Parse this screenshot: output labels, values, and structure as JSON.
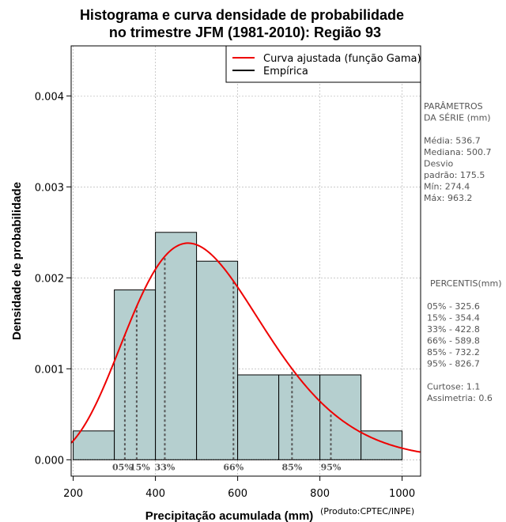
{
  "chart_data": {
    "type": "bar",
    "title": [
      "Histograma e curva densidade de probabilidade",
      "no trimestre JFM (1981-2010): Região 93"
    ],
    "xlabel": "Precipitação acumulada (mm)",
    "ylabel": "Densidade de probabilidade",
    "credit": "(Produto:CPTEC/INPE)",
    "xlim": [
      195,
      1045
    ],
    "ylim": [
      -0.00018,
      0.00455
    ],
    "x_ticks": [
      200,
      400,
      600,
      800,
      1000
    ],
    "x_tick_labels": [
      "200",
      "400",
      "600",
      "800",
      "1000"
    ],
    "y_ticks": [
      0,
      0.001,
      0.002,
      0.003,
      0.004
    ],
    "y_tick_labels": [
      "0.000",
      "0.001",
      "0.002",
      "0.003",
      "0.004"
    ],
    "grid": true,
    "bins": [
      {
        "from": 200,
        "to": 300,
        "density": 0.000317
      },
      {
        "from": 300,
        "to": 400,
        "density": 0.001867
      },
      {
        "from": 400,
        "to": 500,
        "density": 0.0025
      },
      {
        "from": 500,
        "to": 600,
        "density": 0.002183
      },
      {
        "from": 600,
        "to": 700,
        "density": 0.000933
      },
      {
        "from": 700,
        "to": 800,
        "density": 0.000933
      },
      {
        "from": 800,
        "to": 900,
        "density": 0.000933
      },
      {
        "from": 900,
        "to": 1000,
        "density": 0.000317
      }
    ],
    "fitted_curve": {
      "name": "Curva ajustada (função Gama)",
      "distribution": "gamma",
      "mean": 536.7,
      "sd": 175.5,
      "color": "#ee0000"
    },
    "empirical": {
      "name": "Empírica",
      "color": "#000000"
    },
    "percentile_markers": [
      {
        "label": "05%",
        "value": 325.6
      },
      {
        "label": "15%",
        "value": 354.4
      },
      {
        "label": "33%",
        "value": 422.8
      },
      {
        "label": "66%",
        "value": 589.8
      },
      {
        "label": "85%",
        "value": 732.2
      },
      {
        "label": "95%",
        "value": 826.7
      }
    ],
    "legend_position": "top-right",
    "colors": {
      "bar_fill": "#b5cfcf",
      "bar_stroke": "#000000",
      "grid": "#aaaaaa",
      "marker": "#555555",
      "info": "#555555"
    }
  },
  "info_panel": {
    "params_lines": [
      "PARÂMETROS",
      " DA SÉRIE (mm)",
      "",
      "Média:  536.7",
      "Mediana:  500.7",
      "Desvio",
      "padrão:  175.5",
      "Mín:  274.4",
      "Máx:  963.2"
    ],
    "percentis_lines": [
      "PERCENTIS(mm)",
      "",
      "05% -   325.6",
      "15% -   354.4",
      "33% -   422.8",
      "66% -   589.8",
      "85% -   732.2",
      "95% -   826.7",
      "",
      "Curtose:  1.1",
      "Assimetria:  0.6"
    ]
  }
}
